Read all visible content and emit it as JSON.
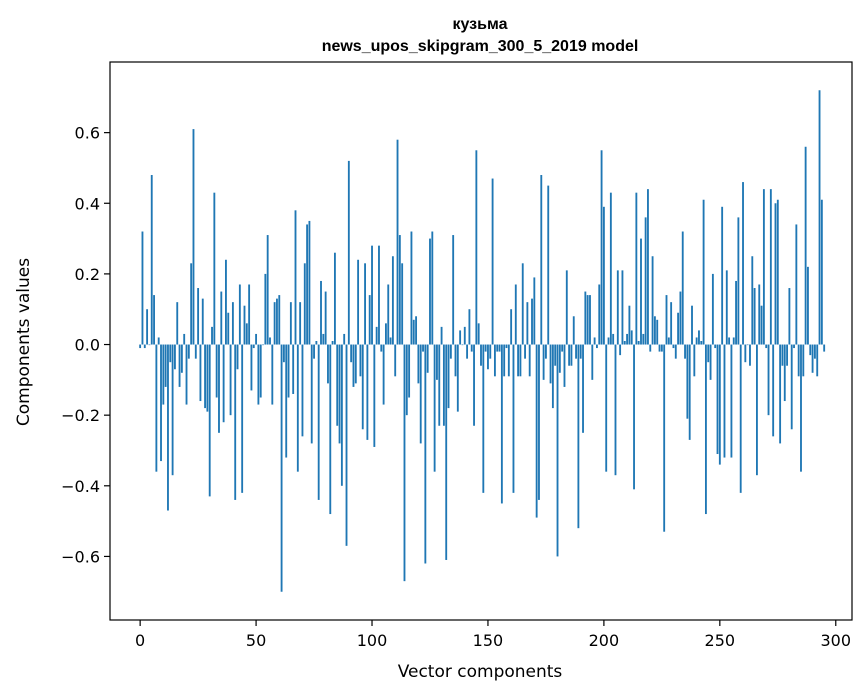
{
  "chart_data": {
    "type": "bar",
    "title": "кузьма",
    "subtitle": "news_upos_skipgram_300_5_2019 model",
    "xlabel": "Vector components",
    "ylabel": "Components values",
    "xlim": [
      -13,
      307
    ],
    "ylim": [
      -0.78,
      0.8
    ],
    "xticks": [
      0,
      50,
      100,
      150,
      200,
      250,
      300
    ],
    "yticks": [
      -0.6,
      -0.4,
      -0.2,
      0.0,
      0.2,
      0.4,
      0.6
    ],
    "ytick_labels": [
      "−0.6",
      "−0.4",
      "−0.2",
      "0.0",
      "0.2",
      "0.4",
      "0.6"
    ],
    "xtick_labels": [
      "0",
      "50",
      "100",
      "150",
      "200",
      "250",
      "300"
    ],
    "bar_color": "#1f77b4",
    "grid": false,
    "values": [
      -0.01,
      0.32,
      -0.01,
      0.1,
      0.0,
      0.48,
      0.14,
      -0.36,
      0.02,
      -0.33,
      -0.17,
      -0.12,
      -0.47,
      -0.05,
      -0.37,
      -0.07,
      0.12,
      -0.12,
      -0.08,
      0.03,
      -0.17,
      -0.04,
      0.23,
      0.61,
      -0.04,
      0.16,
      -0.16,
      0.13,
      -0.18,
      -0.19,
      -0.43,
      0.05,
      0.43,
      -0.15,
      -0.25,
      0.15,
      -0.22,
      0.24,
      0.09,
      -0.2,
      0.12,
      -0.44,
      -0.07,
      0.17,
      -0.42,
      0.11,
      0.06,
      0.17,
      -0.13,
      -0.01,
      0.03,
      -0.17,
      -0.15,
      0.0,
      0.2,
      0.31,
      0.02,
      -0.17,
      0.12,
      0.13,
      0.14,
      -0.7,
      -0.05,
      -0.32,
      -0.15,
      0.12,
      -0.14,
      0.38,
      -0.36,
      0.12,
      -0.26,
      0.23,
      0.34,
      0.35,
      -0.28,
      -0.04,
      0.01,
      -0.44,
      0.18,
      0.03,
      0.15,
      -0.11,
      -0.48,
      0.01,
      0.26,
      -0.23,
      -0.28,
      -0.4,
      0.03,
      -0.57,
      0.52,
      -0.05,
      -0.12,
      -0.11,
      0.24,
      -0.09,
      -0.24,
      0.23,
      -0.27,
      0.14,
      0.28,
      -0.29,
      0.05,
      0.28,
      -0.02,
      -0.17,
      0.06,
      0.17,
      0.02,
      0.25,
      -0.09,
      0.58,
      0.31,
      0.23,
      -0.67,
      -0.2,
      -0.15,
      0.32,
      0.07,
      0.08,
      -0.11,
      -0.28,
      -0.02,
      -0.62,
      -0.08,
      0.3,
      0.32,
      -0.36,
      -0.1,
      -0.23,
      0.05,
      -0.23,
      -0.61,
      -0.18,
      -0.04,
      0.31,
      -0.09,
      -0.19,
      0.04,
      0.0,
      0.05,
      -0.04,
      0.1,
      -0.02,
      -0.23,
      0.55,
      0.06,
      -0.06,
      -0.42,
      -0.02,
      -0.07,
      -0.04,
      0.47,
      -0.09,
      -0.02,
      -0.02,
      -0.45,
      -0.09,
      -0.01,
      -0.09,
      0.1,
      -0.42,
      0.17,
      -0.09,
      -0.09,
      0.23,
      -0.04,
      0.12,
      -0.09,
      0.13,
      0.19,
      -0.49,
      -0.44,
      0.48,
      -0.1,
      -0.04,
      0.45,
      -0.11,
      -0.18,
      -0.06,
      -0.6,
      -0.08,
      -0.02,
      -0.12,
      0.21,
      -0.06,
      -0.06,
      0.08,
      -0.04,
      -0.52,
      -0.04,
      -0.25,
      0.15,
      0.14,
      0.14,
      -0.1,
      0.02,
      -0.01,
      0.17,
      0.55,
      0.39,
      -0.36,
      0.02,
      0.43,
      0.03,
      -0.37,
      0.21,
      -0.03,
      0.21,
      0.01,
      0.03,
      0.11,
      0.04,
      -0.41,
      0.43,
      0.01,
      0.3,
      0.03,
      0.36,
      0.44,
      -0.02,
      0.25,
      0.08,
      0.07,
      -0.02,
      -0.02,
      -0.53,
      0.14,
      0.02,
      0.12,
      -0.01,
      -0.04,
      0.09,
      0.15,
      0.32,
      -0.04,
      -0.21,
      -0.27,
      0.11,
      -0.09,
      0.02,
      0.04,
      0.01,
      0.41,
      -0.48,
      -0.05,
      -0.1,
      0.2,
      -0.01,
      -0.31,
      -0.34,
      0.39,
      -0.32,
      0.21,
      0.02,
      -0.32,
      0.02,
      0.18,
      0.36,
      -0.42,
      0.46,
      -0.05,
      0.0,
      -0.06,
      0.25,
      0.16,
      -0.37,
      0.17,
      0.11,
      0.44,
      -0.01,
      -0.2,
      0.44,
      -0.26,
      0.4,
      0.41,
      -0.28,
      -0.06,
      -0.16,
      -0.06,
      0.16,
      -0.24,
      -0.01,
      0.34,
      -0.09,
      -0.36,
      -0.09,
      0.56,
      0.22,
      -0.03,
      -0.08,
      -0.04,
      -0.09,
      0.72,
      0.41,
      -0.02
    ]
  }
}
